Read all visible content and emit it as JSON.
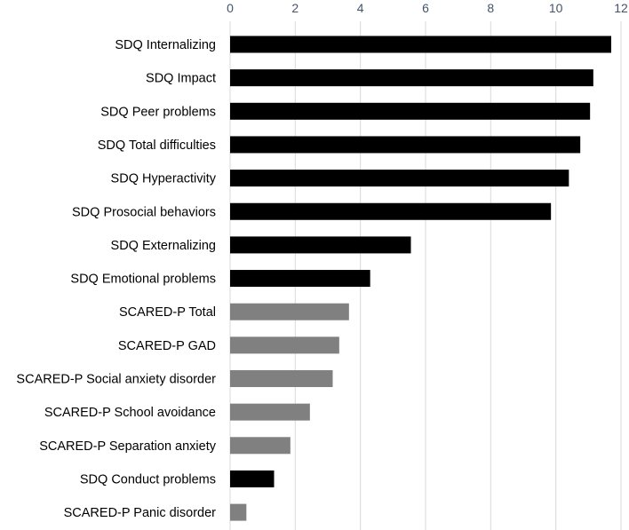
{
  "chart_data": {
    "type": "bar",
    "orientation": "horizontal",
    "title": "",
    "xlabel": "",
    "ylabel": "",
    "xlim": [
      0,
      12
    ],
    "x_ticks": [
      0,
      2,
      4,
      6,
      8,
      10,
      12
    ],
    "x_axis_position": "top",
    "grid": true,
    "legend": "none",
    "categories": [
      "SDQ Internalizing",
      "SDQ Impact",
      "SDQ Peer problems",
      "SDQ Total difficulties",
      "SDQ Hyperactivity",
      "SDQ Prosocial behaviors",
      "SDQ Externalizing ",
      "SDQ Emotional problems",
      "SCARED-P Total",
      "SCARED-P GAD",
      "SCARED-P Social anxiety disorder",
      "SCARED-P School avoidance",
      "SCARED-P Separation anxiety",
      "SDQ Conduct problems",
      "SCARED-P Panic disorder"
    ],
    "values": [
      11.7,
      11.15,
      11.05,
      10.75,
      10.4,
      9.85,
      5.55,
      4.3,
      3.65,
      3.35,
      3.15,
      2.45,
      1.85,
      1.35,
      0.5
    ],
    "bar_colors": [
      "#000000",
      "#000000",
      "#000000",
      "#000000",
      "#000000",
      "#000000",
      "#000000",
      "#000000",
      "#808080",
      "#808080",
      "#808080",
      "#808080",
      "#808080",
      "#000000",
      "#808080"
    ],
    "colors": {
      "sdq": "#000000",
      "scared_p": "#808080",
      "gridline": "#d9d9d9",
      "tick_text": "#44546a",
      "label_text": "#000000"
    }
  }
}
